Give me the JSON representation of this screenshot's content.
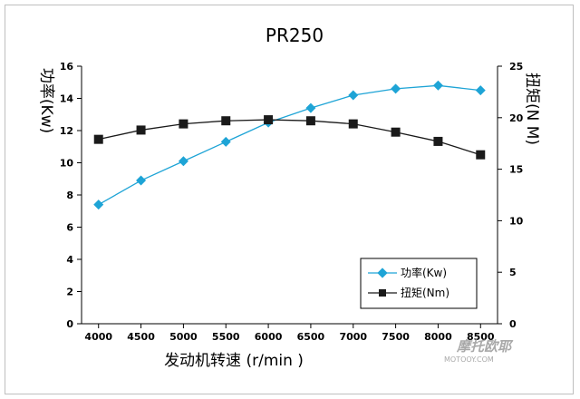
{
  "chart_data": {
    "type": "line",
    "title": "PR250",
    "xlabel": "发动机转速 (r/min )",
    "ylabel_left": "功率(Kw)",
    "ylabel_right": "扭矩(N M)",
    "x": [
      4000,
      4500,
      5000,
      5500,
      6000,
      6500,
      7000,
      7500,
      8000,
      8500
    ],
    "x_tick_labels": [
      "4000",
      "4500",
      "5000",
      "5500",
      "6000",
      "6500",
      "7000",
      "7500",
      "8000",
      "8500"
    ],
    "ylim_left": [
      0,
      16
    ],
    "yticks_left": [
      "0",
      "2",
      "4",
      "6",
      "8",
      "10",
      "12",
      "14",
      "16"
    ],
    "ylim_right": [
      0,
      25
    ],
    "yticks_right": [
      "0",
      "5",
      "10",
      "15",
      "20",
      "25"
    ],
    "grid": false,
    "legend_position": "bottom-right",
    "series": [
      {
        "name": "功率(Kw)",
        "axis": "left",
        "marker": "diamond",
        "color": "#1ea4d6",
        "values": [
          7.4,
          8.9,
          10.1,
          11.3,
          12.5,
          13.4,
          14.2,
          14.6,
          14.8,
          14.5
        ]
      },
      {
        "name": "扭矩(Nm)",
        "axis": "right",
        "marker": "square",
        "color": "#1a1a1a",
        "values": [
          17.9,
          18.8,
          19.4,
          19.7,
          19.8,
          19.7,
          19.4,
          18.6,
          17.7,
          16.4
        ]
      }
    ]
  },
  "watermark": {
    "text": "摩托欧耶",
    "subtext": "MOTOOY.COM"
  }
}
